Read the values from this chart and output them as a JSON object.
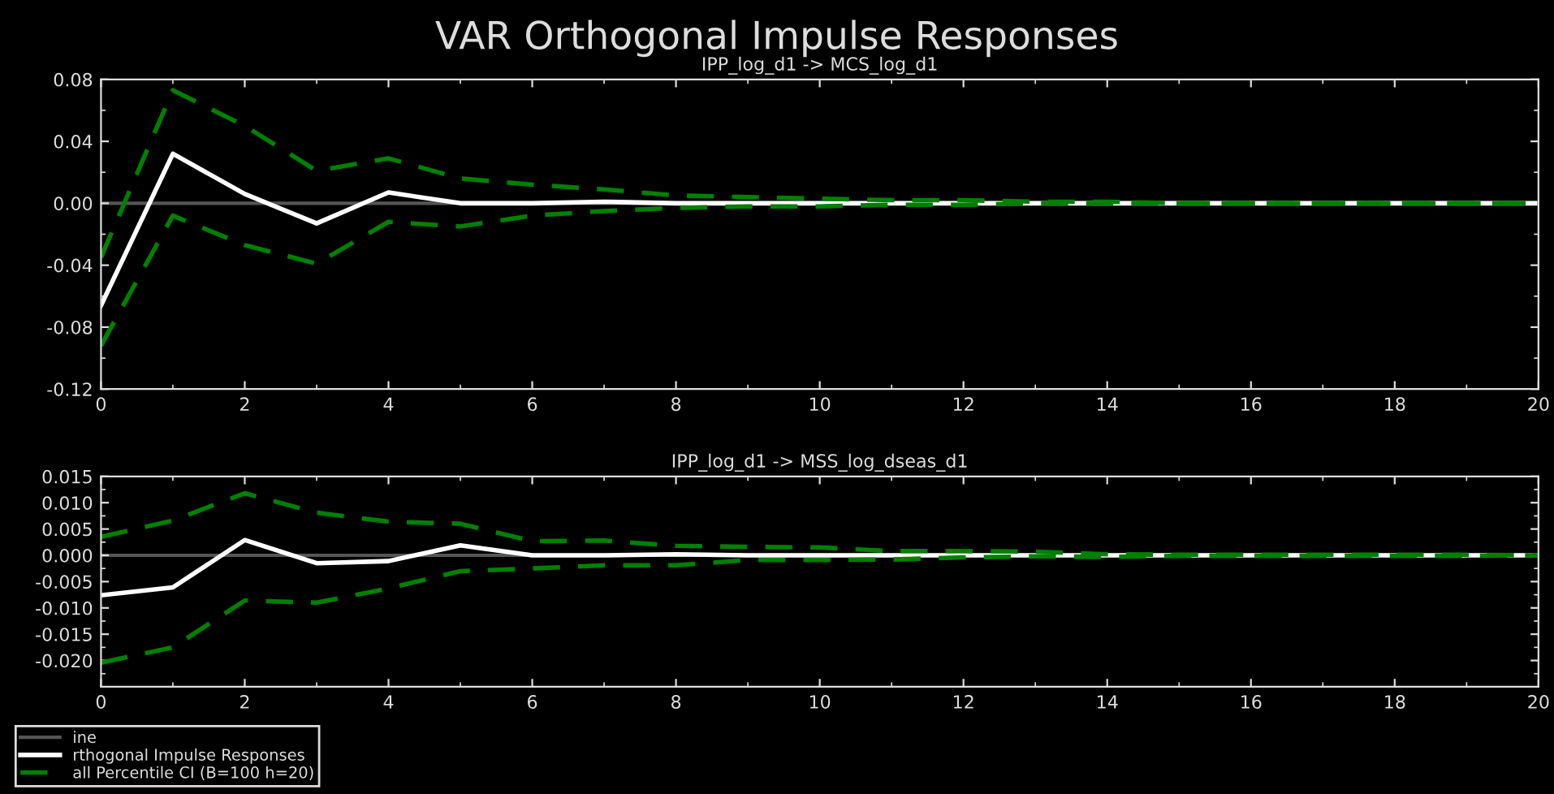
{
  "chart_data": [
    {
      "type": "line",
      "title": "VAR Orthogonal Impulse Responses",
      "subtitle": "IPP_log_d1 -> MCS_log_d1",
      "x": [
        0,
        1,
        2,
        3,
        4,
        5,
        6,
        7,
        8,
        9,
        10,
        11,
        12,
        13,
        14,
        15,
        16,
        17,
        18,
        19,
        20
      ],
      "series": [
        {
          "color": "#ffffff",
          "line_style": "solid",
          "values": [
            -0.066,
            0.032,
            0.006,
            -0.013,
            0.007,
            0.0,
            0.0,
            0.001,
            0.0,
            0.0,
            0.0,
            0.0,
            0.0,
            0.0,
            0.0,
            0.0,
            0.0,
            0.0,
            0.0,
            0.0,
            0.0
          ]
        },
        {
          "color": "#008000",
          "line_style": "dashed",
          "values": [
            -0.035,
            0.073,
            0.05,
            0.021,
            0.029,
            0.016,
            0.012,
            0.009,
            0.005,
            0.004,
            0.003,
            0.002,
            0.002,
            0.001,
            0.001,
            0.0,
            0.0,
            0.0,
            0.0,
            0.0,
            0.0
          ]
        },
        {
          "color": "#008000",
          "line_style": "dashed",
          "values": [
            -0.092,
            -0.008,
            -0.027,
            -0.039,
            -0.012,
            -0.015,
            -0.008,
            -0.005,
            -0.003,
            -0.002,
            -0.002,
            -0.001,
            -0.001,
            0.0,
            0.0,
            0.0,
            0.0,
            0.0,
            0.0,
            0.0,
            0.0
          ]
        }
      ],
      "ref_lines": [
        {
          "axis": "y",
          "value": 0,
          "color": "#555555"
        }
      ],
      "xlim": [
        0,
        20
      ],
      "xticks": [
        0,
        2,
        4,
        6,
        8,
        10,
        12,
        14,
        16,
        18,
        20
      ],
      "ylim": [
        -0.12,
        0.08
      ],
      "yticks": [
        {
          "value": -0.12,
          "label": "-0.12"
        },
        {
          "value": -0.08,
          "label": "-0.08"
        },
        {
          "value": -0.04,
          "label": "-0.04"
        },
        {
          "value": 0,
          "label": "0.00"
        },
        {
          "value": 0.04,
          "label": "0.04"
        },
        {
          "value": 0.08,
          "label": "0.08"
        }
      ],
      "grid": false,
      "legend": false
    },
    {
      "type": "line",
      "subtitle": "IPP_log_d1 -> MSS_log_dseas_d1",
      "x": [
        0,
        1,
        2,
        3,
        4,
        5,
        6,
        7,
        8,
        9,
        10,
        11,
        12,
        13,
        14,
        15,
        16,
        17,
        18,
        19,
        20
      ],
      "series": [
        {
          "name": "rthogonal Impulse Responses",
          "color": "#ffffff",
          "line_style": "solid",
          "values": [
            -0.0076,
            -0.0061,
            0.0029,
            -0.0015,
            -0.0011,
            0.0019,
            0.0,
            0.0,
            0.0002,
            0.0,
            0.0,
            0.0,
            0.0,
            0.0,
            0.0,
            0.0,
            0.0,
            0.0,
            0.0,
            0.0,
            0.0
          ]
        },
        {
          "name": "all Percentile CI (B=100 h=20)",
          "color": "#008000",
          "line_style": "dashed",
          "values": [
            0.0035,
            0.0066,
            0.0118,
            0.0081,
            0.0064,
            0.006,
            0.0027,
            0.0028,
            0.0018,
            0.0016,
            0.0015,
            0.0008,
            0.0008,
            0.0007,
            0.0002,
            0.0001,
            0.0001,
            0.0001,
            0.0001,
            0.0001,
            0.0
          ]
        },
        {
          "color": "#008000",
          "line_style": "dashed",
          "values": [
            -0.0204,
            -0.0175,
            -0.0086,
            -0.009,
            -0.0063,
            -0.003,
            -0.0025,
            -0.0019,
            -0.0019,
            -0.0009,
            -0.0009,
            -0.0008,
            -0.0004,
            -0.0002,
            -0.0003,
            -0.0001,
            -0.0001,
            -0.0001,
            -0.0001,
            -0.0001,
            0.0
          ]
        }
      ],
      "ref_lines": [
        {
          "axis": "y",
          "value": 0,
          "color": "#555555",
          "label": "ine"
        }
      ],
      "xlim": [
        0,
        20
      ],
      "xticks": [
        0,
        2,
        4,
        6,
        8,
        10,
        12,
        14,
        16,
        18,
        20
      ],
      "ylim": [
        -0.025,
        0.015
      ],
      "yticks": [
        {
          "value": -0.02,
          "label": "-0.020"
        },
        {
          "value": -0.015,
          "label": "-0.015"
        },
        {
          "value": -0.01,
          "label": "-0.010"
        },
        {
          "value": -0.005,
          "label": "-0.005"
        },
        {
          "value": 0,
          "label": "0.000"
        },
        {
          "value": 0.005,
          "label": "0.005"
        },
        {
          "value": 0.01,
          "label": "0.010"
        },
        {
          "value": 0.015,
          "label": "0.015"
        }
      ],
      "grid": false,
      "legend": "bottom left"
    }
  ]
}
